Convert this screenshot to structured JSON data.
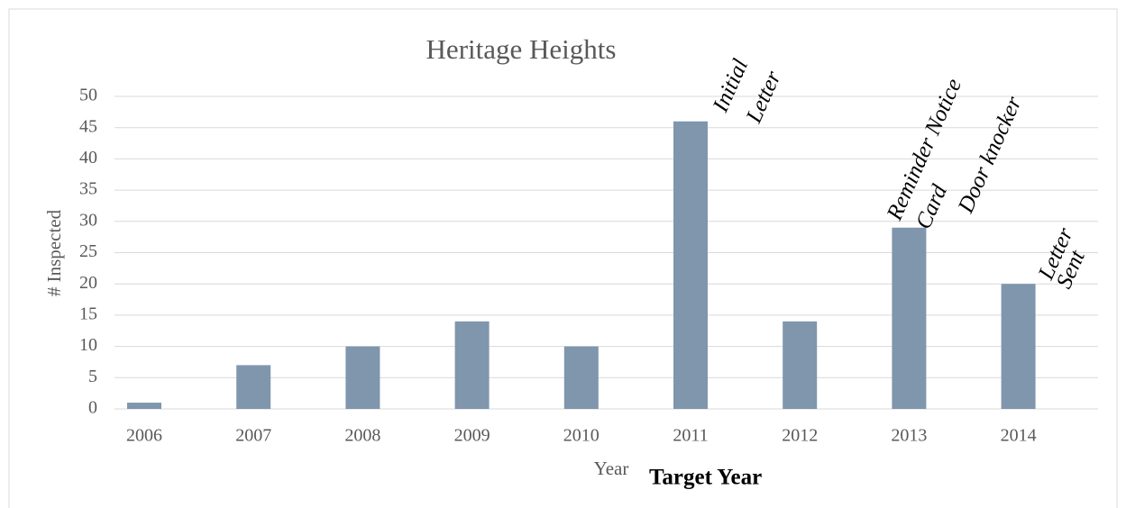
{
  "chart_data": {
    "type": "bar",
    "title": "Heritage Heights",
    "categories": [
      "2006",
      "2007",
      "2008",
      "2009",
      "2010",
      "2011",
      "2012",
      "2013",
      "2014"
    ],
    "values": [
      1,
      7,
      10,
      14,
      10,
      46,
      14,
      29,
      20
    ],
    "color": "#7f96ad",
    "ylim": [
      0,
      50
    ],
    "yticks": [
      0,
      5,
      10,
      15,
      20,
      25,
      30,
      35,
      40,
      45,
      50
    ],
    "grid": true,
    "y_label": "# Inspected",
    "x_label": "Year",
    "x_label_extra": "Target Year",
    "annotations": [
      {
        "lines": [
          "Initial",
          "Letter"
        ]
      },
      {
        "lines": [
          "Reminder Notice",
          "Card"
        ]
      },
      {
        "lines": [
          "Door knocker"
        ]
      },
      {
        "lines": [
          "Letter",
          "Sent"
        ]
      }
    ]
  }
}
